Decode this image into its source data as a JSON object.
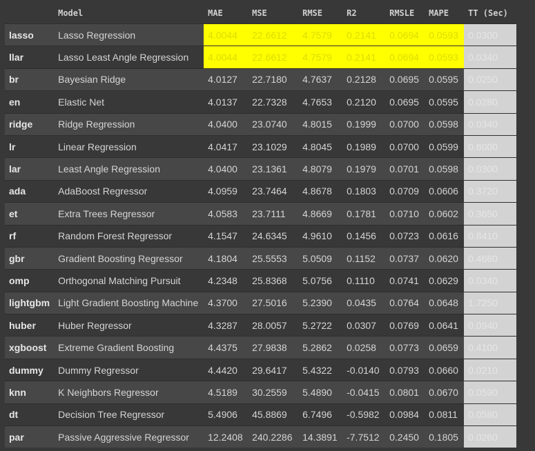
{
  "colors": {
    "highlight": "#ffff00",
    "tt_background": "#d3d3d3",
    "row_odd": "#474747",
    "row_even": "#383838"
  },
  "table": {
    "headers": [
      "",
      "Model",
      "MAE",
      "MSE",
      "RMSE",
      "R2",
      "RMSLE",
      "MAPE",
      "TT (Sec)"
    ],
    "rows": [
      [
        "lasso",
        "Lasso Regression",
        "4.0044",
        "22.6612",
        "4.7579",
        "0.2141",
        "0.0694",
        "0.0593",
        "0.0300"
      ],
      [
        "llar",
        "Lasso Least Angle Regression",
        "4.0044",
        "22.6612",
        "4.7579",
        "0.2141",
        "0.0694",
        "0.0593",
        "0.0340"
      ],
      [
        "br",
        "Bayesian Ridge",
        "4.0127",
        "22.7180",
        "4.7637",
        "0.2128",
        "0.0695",
        "0.0595",
        "0.0250"
      ],
      [
        "en",
        "Elastic Net",
        "4.0137",
        "22.7328",
        "4.7653",
        "0.2120",
        "0.0695",
        "0.0595",
        "0.0280"
      ],
      [
        "ridge",
        "Ridge Regression",
        "4.0400",
        "23.0740",
        "4.8015",
        "0.1999",
        "0.0700",
        "0.0598",
        "0.0340"
      ],
      [
        "lr",
        "Linear Regression",
        "4.0417",
        "23.1029",
        "4.8045",
        "0.1989",
        "0.0700",
        "0.0599",
        "0.6000"
      ],
      [
        "lar",
        "Least Angle Regression",
        "4.0400",
        "23.1361",
        "4.8079",
        "0.1979",
        "0.0701",
        "0.0598",
        "0.0300"
      ],
      [
        "ada",
        "AdaBoost Regressor",
        "4.0959",
        "23.7464",
        "4.8678",
        "0.1803",
        "0.0709",
        "0.0606",
        "0.3720"
      ],
      [
        "et",
        "Extra Trees Regressor",
        "4.0583",
        "23.7111",
        "4.8669",
        "0.1781",
        "0.0710",
        "0.0602",
        "0.3650"
      ],
      [
        "rf",
        "Random Forest Regressor",
        "4.1547",
        "24.6345",
        "4.9610",
        "0.1456",
        "0.0723",
        "0.0616",
        "0.8410"
      ],
      [
        "gbr",
        "Gradient Boosting Regressor",
        "4.1804",
        "25.5553",
        "5.0509",
        "0.1152",
        "0.0737",
        "0.0620",
        "0.4660"
      ],
      [
        "omp",
        "Orthogonal Matching Pursuit",
        "4.2348",
        "25.8368",
        "5.0756",
        "0.1110",
        "0.0741",
        "0.0629",
        "0.0340"
      ],
      [
        "lightgbm",
        "Light Gradient Boosting Machine",
        "4.3700",
        "27.5016",
        "5.2390",
        "0.0435",
        "0.0764",
        "0.0648",
        "1.7250"
      ],
      [
        "huber",
        "Huber Regressor",
        "4.3287",
        "28.0057",
        "5.2722",
        "0.0307",
        "0.0769",
        "0.0641",
        "0.0940"
      ],
      [
        "xgboost",
        "Extreme Gradient Boosting",
        "4.4375",
        "27.9838",
        "5.2862",
        "0.0258",
        "0.0773",
        "0.0659",
        "0.4100"
      ],
      [
        "dummy",
        "Dummy Regressor",
        "4.4420",
        "29.6417",
        "5.4322",
        "-0.0140",
        "0.0793",
        "0.0660",
        "0.0210"
      ],
      [
        "knn",
        "K Neighbors Regressor",
        "4.5189",
        "30.2559",
        "5.4890",
        "-0.0415",
        "0.0801",
        "0.0670",
        "0.0590"
      ],
      [
        "dt",
        "Decision Tree Regressor",
        "5.4906",
        "45.8869",
        "6.7496",
        "-0.5982",
        "0.0984",
        "0.0811",
        "0.0580"
      ],
      [
        "par",
        "Passive Aggressive Regressor",
        "12.2408",
        "240.2286",
        "14.3891",
        "-7.7512",
        "0.2450",
        "0.1805",
        "0.0260"
      ]
    ]
  }
}
